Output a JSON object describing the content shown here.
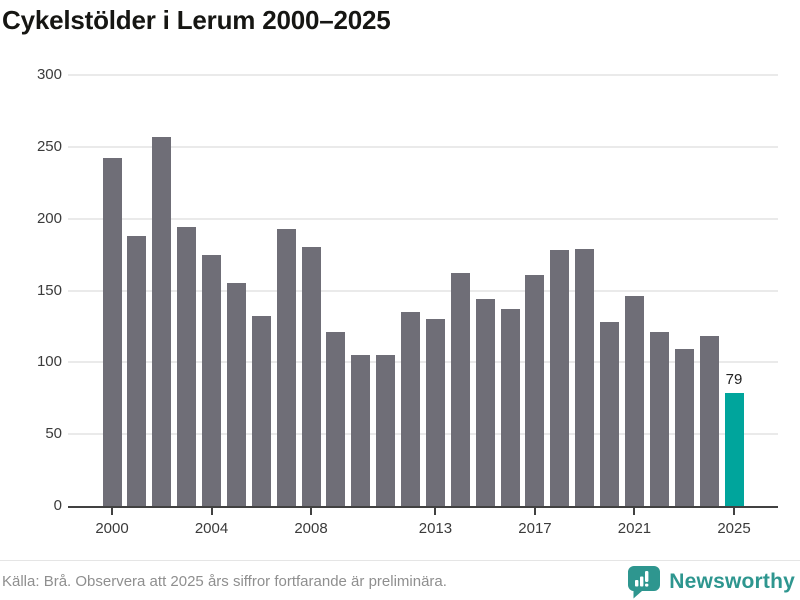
{
  "title": "Cykelstölder i Lerum 2000–2025",
  "chart_data": {
    "type": "bar",
    "title": "Cykelstölder i Lerum 2000–2025",
    "xlabel": "",
    "ylabel": "",
    "ylim": [
      0,
      300
    ],
    "yticks": [
      0,
      50,
      100,
      150,
      200,
      250,
      300
    ],
    "grid": "horizontal",
    "legend": "none",
    "categories": [
      2000,
      2001,
      2002,
      2003,
      2004,
      2005,
      2006,
      2007,
      2008,
      2009,
      2010,
      2011,
      2012,
      2013,
      2014,
      2015,
      2016,
      2017,
      2018,
      2019,
      2020,
      2021,
      2022,
      2023,
      2024,
      2025
    ],
    "values": [
      242,
      188,
      257,
      194,
      175,
      155,
      132,
      193,
      180,
      121,
      105,
      105,
      135,
      130,
      162,
      144,
      137,
      161,
      178,
      179,
      128,
      146,
      121,
      109,
      118,
      79
    ],
    "xtick_labels": [
      "2000",
      "2004",
      "2008",
      "2013",
      "2017",
      "2021",
      "2025"
    ],
    "xtick_indices": [
      0,
      4,
      8,
      13,
      17,
      21,
      25
    ],
    "bar_color": "#6f6e77",
    "highlight_index": 25,
    "highlight_color": "#00a59c",
    "value_labels": [
      {
        "index": 25,
        "text": "79"
      }
    ]
  },
  "footer": {
    "source": "Källa: Brå. Observera att 2025 års siffror fortfarande är preliminära.",
    "brand": "Newsworthy"
  },
  "colors": {
    "accent_teal": "#00a59c",
    "bar_gray": "#6f6e77",
    "brand_teal": "#2e968f"
  }
}
